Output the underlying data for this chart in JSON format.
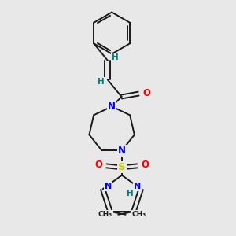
{
  "bg_color": "#e8e8e8",
  "atom_colors": {
    "C": "#1a1a1a",
    "N": "#0000ff",
    "O": "#ff0000",
    "S": "#cccc00",
    "H": "#008080"
  },
  "bond_color": "#1a1a1a",
  "bond_width": 1.4
}
